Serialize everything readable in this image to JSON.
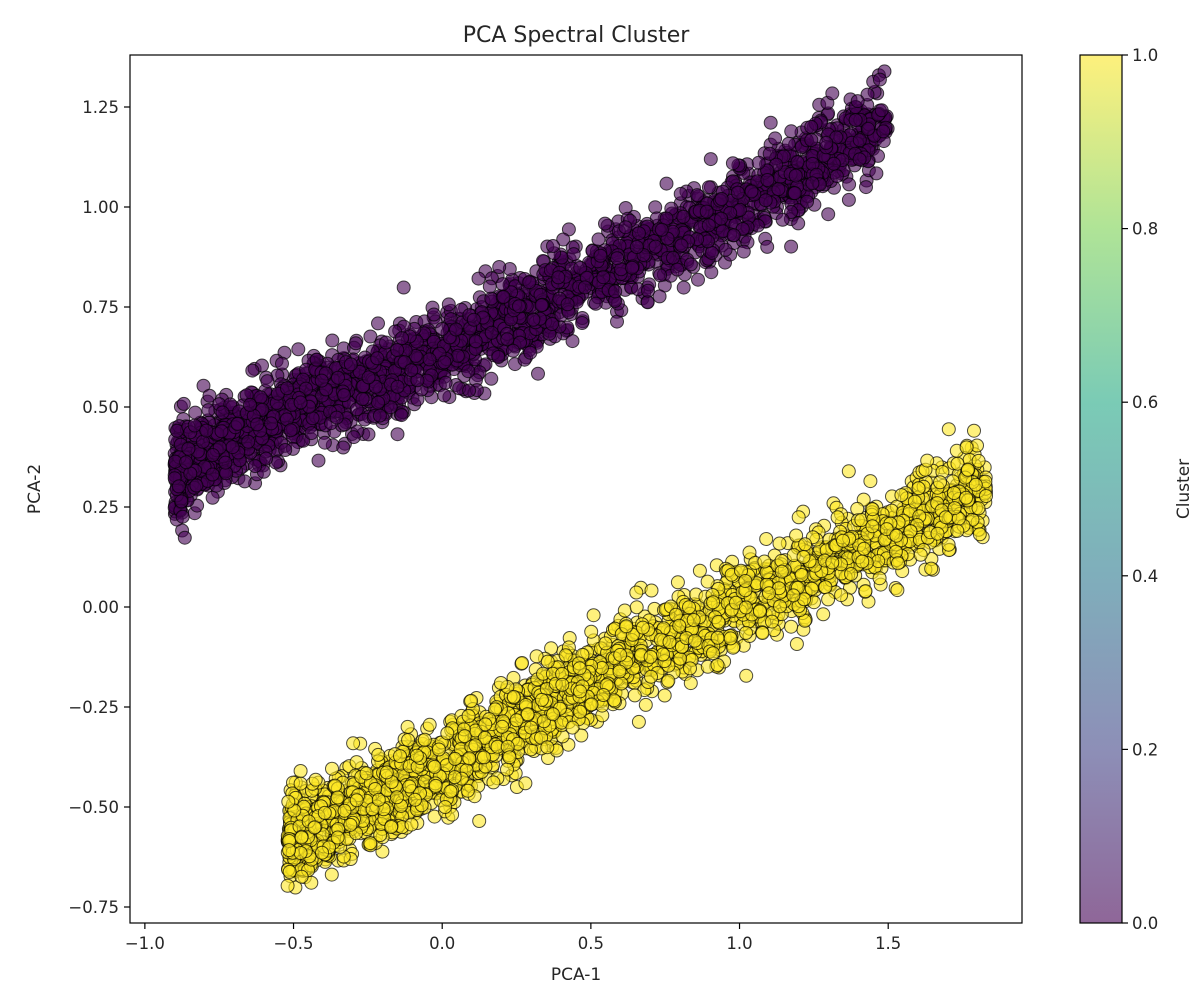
{
  "chart_data": {
    "type": "scatter",
    "title": "PCA Spectral Cluster",
    "xlabel": "PCA-1",
    "ylabel": "PCA-2",
    "xlim": [
      -1.05,
      1.95
    ],
    "ylim": [
      -0.79,
      1.38
    ],
    "grid": false,
    "x_ticks": [
      {
        "value": -1.0,
        "label": "−1.0"
      },
      {
        "value": -0.5,
        "label": "−0.5"
      },
      {
        "value": 0.0,
        "label": "0.0"
      },
      {
        "value": 0.5,
        "label": "0.5"
      },
      {
        "value": 1.0,
        "label": "1.0"
      },
      {
        "value": 1.5,
        "label": "1.5"
      }
    ],
    "y_ticks": [
      {
        "value": -0.75,
        "label": "−0.75"
      },
      {
        "value": -0.5,
        "label": "−0.50"
      },
      {
        "value": -0.25,
        "label": "−0.25"
      },
      {
        "value": 0.0,
        "label": "0.00"
      },
      {
        "value": 0.25,
        "label": "0.25"
      },
      {
        "value": 0.5,
        "label": "0.50"
      },
      {
        "value": 0.75,
        "label": "0.75"
      },
      {
        "value": 1.0,
        "label": "1.00"
      },
      {
        "value": 1.25,
        "label": "1.25"
      }
    ],
    "marker_alpha": 0.6,
    "marker_edge_color": "#000000",
    "colormap": {
      "name": "viridis",
      "stops": [
        "#440154",
        "#414487",
        "#2a788e",
        "#22a884",
        "#7ad151",
        "#fde725"
      ]
    },
    "colorbar": {
      "label": "Cluster",
      "range": [
        0.0,
        1.0
      ],
      "ticks": [
        {
          "value": 0.0,
          "label": "0.0"
        },
        {
          "value": 0.2,
          "label": "0.2"
        },
        {
          "value": 0.4,
          "label": "0.4"
        },
        {
          "value": 0.6,
          "label": "0.6"
        },
        {
          "value": 0.8,
          "label": "0.8"
        },
        {
          "value": 1.0,
          "label": "1.0"
        }
      ]
    },
    "clusters": [
      {
        "cluster_value": 0,
        "color": "#440154",
        "count": 2600,
        "x_range": [
          -0.9,
          1.5
        ],
        "centerline": [
          {
            "x": -0.9,
            "y": 0.33
          },
          {
            "x": -0.5,
            "y": 0.5
          },
          {
            "x": 0.0,
            "y": 0.63
          },
          {
            "x": 0.5,
            "y": 0.82
          },
          {
            "x": 1.0,
            "y": 1.0
          },
          {
            "x": 1.5,
            "y": 1.22
          }
        ],
        "spread": 0.09
      },
      {
        "cluster_value": 1,
        "color": "#fde725",
        "count": 2600,
        "x_range": [
          -0.52,
          1.83
        ],
        "centerline": [
          {
            "x": -0.52,
            "y": -0.58
          },
          {
            "x": 0.0,
            "y": -0.4
          },
          {
            "x": 0.5,
            "y": -0.18
          },
          {
            "x": 1.0,
            "y": 0.0
          },
          {
            "x": 1.5,
            "y": 0.18
          },
          {
            "x": 1.83,
            "y": 0.3
          }
        ],
        "spread": 0.09
      }
    ]
  }
}
